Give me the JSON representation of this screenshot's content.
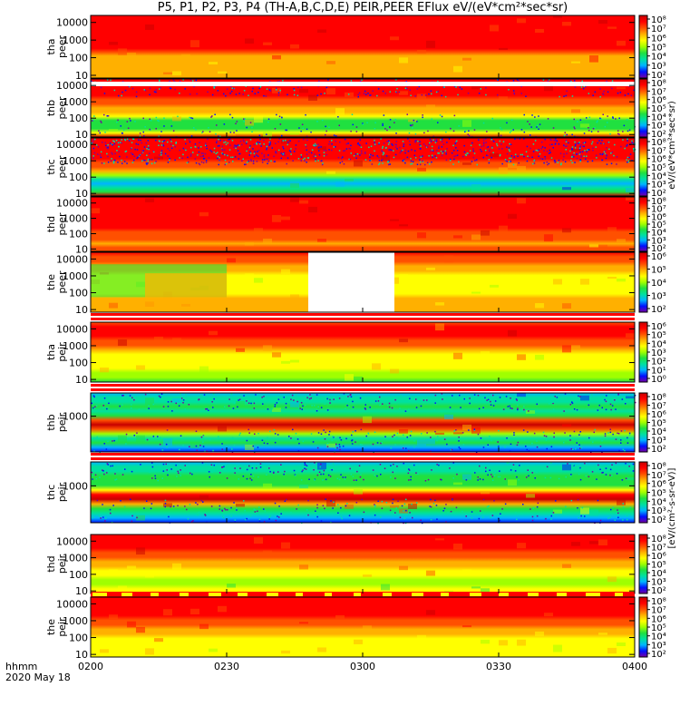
{
  "title": "P5, P1, P2, P3, P4 (TH-A,B,C,D,E) PEIR,PEER EFlux eV/(eV*cm²*sec*sr)",
  "colorbar_label_a": "eV/(eV*cm²*sec*sr)",
  "colorbar_label_b": "[eV/(cm²-s-sr-eV)]",
  "xaxis": {
    "ticks": [
      "0200",
      "0230",
      "0300",
      "0330",
      "0400"
    ],
    "label": "hhmm",
    "date": "2020 May 18"
  },
  "colors": {
    "ramp": [
      "#ffffff",
      "#7800a0",
      "#0010ff",
      "#00b4ff",
      "#00e0a0",
      "#20e040",
      "#a0ff00",
      "#ffff00",
      "#ffb000",
      "#ff5000",
      "#ff0000",
      "#c80000"
    ]
  },
  "chart_data": [
    {
      "type": "heatmap",
      "panel": "tha-peer",
      "ylabel": [
        "tha",
        "peer"
      ],
      "yticks": [
        "10000",
        "1000",
        "100",
        "10"
      ],
      "yscale": "log",
      "ylim": [
        7,
        25000
      ],
      "cbar_ticks": [
        "10⁸",
        "10⁷",
        "10⁶",
        "10⁵",
        "10⁴",
        "10³",
        "10²"
      ],
      "profile": [
        9.5,
        9.5,
        9.5,
        9.5,
        9.5,
        9.5,
        10,
        10,
        10,
        9.5,
        9,
        8,
        8,
        7.5,
        7.5,
        7.5,
        7.5,
        8
      ],
      "noise": 0
    },
    {
      "type": "heatmap",
      "panel": "thb-peer",
      "ylabel": [
        "thb",
        "peer"
      ],
      "yticks": [
        "10000",
        "1000",
        "100",
        "10"
      ],
      "yscale": "log",
      "ylim": [
        7,
        25000
      ],
      "cbar_ticks": [
        "10⁸",
        "10⁷",
        "10⁶",
        "10⁵",
        "10⁴",
        "10³",
        "10²"
      ],
      "profile": [
        10,
        10,
        10,
        9.5,
        9.5,
        9,
        8.5,
        8,
        7.5,
        6.5,
        5,
        4.5,
        5,
        7,
        11
      ],
      "noise": 1,
      "topbar": "white"
    },
    {
      "type": "heatmap",
      "panel": "thc-peer",
      "ylabel": [
        "thc",
        "peer"
      ],
      "yticks": [
        "10000",
        "1000",
        "100",
        "10"
      ],
      "yscale": "log",
      "ylim": [
        7,
        25000
      ],
      "cbar_ticks": [
        "10⁸",
        "10⁷",
        "10⁶",
        "10⁵",
        "10⁴",
        "10³",
        "10²"
      ],
      "profile": [
        10,
        10,
        10,
        9.5,
        10,
        9.5,
        9,
        8.5,
        7.5,
        6,
        4,
        3,
        3.5,
        4.5,
        11
      ],
      "noise": 2
    },
    {
      "type": "heatmap",
      "panel": "thd-peer",
      "ylabel": [
        "thd",
        "peer"
      ],
      "yticks": [
        "10000",
        "1000",
        "100",
        "10"
      ],
      "yscale": "log",
      "ylim": [
        7,
        25000
      ],
      "cbar_ticks": [
        "10⁸",
        "10⁷",
        "10⁶",
        "10⁵",
        "10⁴",
        "10³",
        "10²"
      ],
      "profile": [
        9.5,
        9.5,
        9.5,
        9.5,
        10,
        10,
        10,
        9.5,
        9.5,
        9,
        9,
        8.5,
        8,
        8.5,
        9
      ],
      "noise": 0
    },
    {
      "type": "heatmap",
      "panel": "the-peer",
      "ylabel": [
        "the",
        "peer"
      ],
      "yticks": [
        "10000",
        "1000",
        "100",
        "10"
      ],
      "yscale": "log",
      "ylim": [
        7,
        25000
      ],
      "cbar_ticks": [
        "10⁶",
        "10⁵",
        "10⁴",
        "10³",
        "10²"
      ],
      "profile": [
        9.5,
        9,
        8.5,
        8,
        7.5,
        7,
        7,
        6.5,
        6.5,
        7,
        7.5,
        7.5,
        7.5,
        7.5
      ],
      "noise": 0,
      "gap": [
        "0248",
        "0307"
      ],
      "pre": "green"
    },
    {
      "type": "heatmap",
      "panel": "tha-peir",
      "ylabel": [
        "tha",
        "peir"
      ],
      "yticks": [
        "10000",
        "1000",
        "100",
        "10"
      ],
      "yscale": "log",
      "ylim": [
        7,
        25000
      ],
      "cbar_ticks": [
        "10⁶",
        "10⁵",
        "10⁴",
        "10³",
        "10²",
        "10¹",
        "10⁰"
      ],
      "profile": [
        9,
        9.5,
        9.5,
        9.5,
        9,
        8.5,
        8,
        7,
        6.5,
        6.5,
        6.5,
        6,
        5.5,
        5
      ],
      "noise": 0,
      "topbar": "red"
    },
    {
      "type": "heatmap",
      "panel": "thb-peir",
      "ylabel": [
        "thb",
        "peir"
      ],
      "yticks": [
        "1000"
      ],
      "yscale": "log",
      "ylim": [
        7,
        25000
      ],
      "cbar_ticks": [
        "10⁸",
        "10⁷",
        "10⁶",
        "10⁵",
        "10⁴",
        "10³",
        "10²"
      ],
      "profile": [
        3,
        3.5,
        4,
        4.5,
        4,
        5,
        9,
        11,
        9,
        6,
        4,
        5,
        3,
        2
      ],
      "noise": 1,
      "topbar": "red"
    },
    {
      "type": "heatmap",
      "panel": "thc-peir",
      "ylabel": [
        "thc",
        "peir"
      ],
      "yticks": [
        "1000"
      ],
      "yscale": "log",
      "ylim": [
        7,
        25000
      ],
      "cbar_ticks": [
        "10⁸",
        "10⁷",
        "10⁶",
        "10⁵",
        "10⁴",
        "10³",
        "10²"
      ],
      "profile": [
        3,
        3.5,
        4,
        4.5,
        5,
        5,
        7,
        10,
        11,
        8,
        5,
        4,
        3,
        2
      ],
      "noise": 1,
      "topbar": "red"
    },
    {
      "type": "heatmap",
      "panel": "thd-peir",
      "ylabel": [
        "thd",
        "peir"
      ],
      "yticks": [
        "10000",
        "1000",
        "100",
        "10"
      ],
      "yscale": "log",
      "ylim": [
        7,
        25000
      ],
      "cbar_ticks": [
        "10⁸",
        "10⁷",
        "10⁶",
        "10⁵",
        "10⁴",
        "10³",
        "10²"
      ],
      "profile": [
        10,
        10,
        10,
        9.5,
        9,
        8.5,
        8,
        7.5,
        7,
        6.5,
        6,
        6,
        6.5,
        7
      ],
      "noise": 0
    },
    {
      "type": "heatmap",
      "panel": "the-peir",
      "ylabel": [
        "the",
        "peir"
      ],
      "yticks": [
        "10000",
        "1000",
        "100",
        "10"
      ],
      "yscale": "log",
      "ylim": [
        7,
        25000
      ],
      "cbar_ticks": [
        "10⁸",
        "10⁷",
        "10⁶",
        "10⁵",
        "10⁴",
        "10³",
        "10²"
      ],
      "profile": [
        9.5,
        10,
        10,
        10,
        9.5,
        9,
        8.5,
        8,
        7.5,
        7,
        7,
        7,
        7,
        7
      ],
      "noise": 0,
      "topbar": "dashed"
    }
  ]
}
